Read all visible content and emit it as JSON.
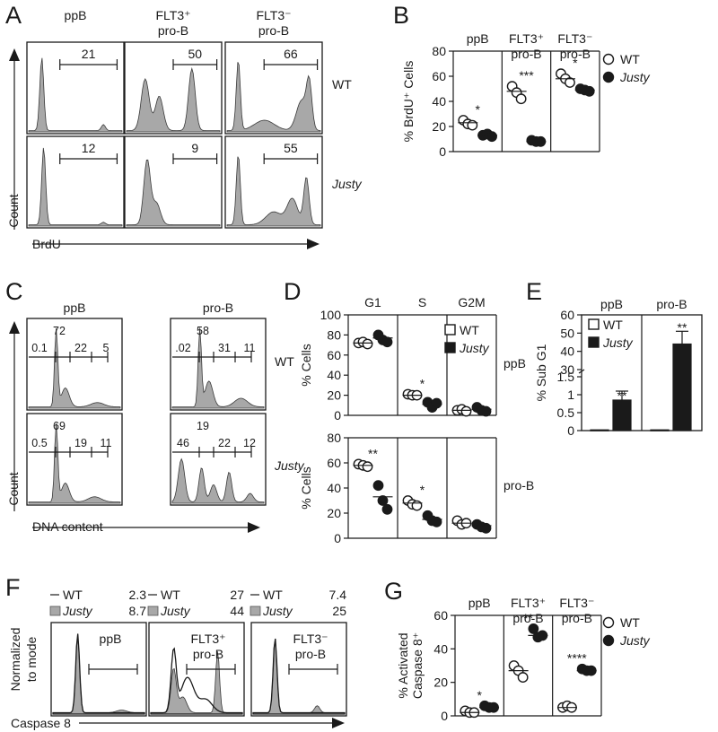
{
  "panel_letters": [
    "A",
    "B",
    "C",
    "D",
    "E",
    "F",
    "G"
  ],
  "A": {
    "columns": [
      "ppB",
      "FLT3⁺\npro-B",
      "FLT3⁻\npro-B"
    ],
    "rows": [
      "WT",
      "Justy"
    ],
    "gates": [
      [
        "21",
        "50",
        "66"
      ],
      [
        "12",
        "9",
        "55"
      ]
    ],
    "ylabel": "Count",
    "xlabel": "BrdU"
  },
  "C": {
    "columns": [
      "ppB",
      "pro-B"
    ],
    "rows": [
      "WT",
      "Justy"
    ],
    "gates": [
      [
        [
          "0.1",
          "72",
          "22",
          "5"
        ],
        [
          ".02",
          "58",
          "31",
          "11"
        ]
      ],
      [
        [
          "0.5",
          "69",
          "19",
          "11"
        ],
        [
          "46",
          "19",
          "22",
          "12"
        ]
      ]
    ],
    "ylabel": "Count",
    "xlabel": "DNA content"
  },
  "F": {
    "ylabel": [
      "Normalized",
      "to mode"
    ],
    "xlabel": "Caspase 8",
    "panels": [
      {
        "name": [
          "ppB"
        ],
        "wt": "2.3",
        "justy": "8.7"
      },
      {
        "name": [
          "FLT3⁺",
          "pro-B"
        ],
        "wt": "27",
        "justy": "44"
      },
      {
        "name": [
          "FLT3⁻",
          "pro-B"
        ],
        "wt": "7.4",
        "justy": "25"
      }
    ],
    "legend": {
      "wt": "WT",
      "justy": "Justy"
    }
  },
  "chart_data": [
    {
      "panel": "B",
      "type": "scatter",
      "ylabel": "% BrdU⁺ Cells",
      "ylim": [
        0,
        80
      ],
      "yticks": [
        0,
        20,
        40,
        60,
        80
      ],
      "groups": [
        "ppB",
        "FLT3⁺\npro-B",
        "FLT3⁻\npro-B"
      ],
      "series": [
        {
          "name": "WT",
          "values": [
            [
              25,
              22,
              21
            ],
            [
              52,
              47,
              42
            ],
            [
              62,
              58,
              55
            ]
          ],
          "means": [
            23,
            48,
            58
          ]
        },
        {
          "name": "Justy",
          "values": [
            [
              13,
              14,
              12
            ],
            [
              9,
              8,
              8
            ],
            [
              50,
              49,
              48
            ]
          ],
          "means": [
            13,
            8,
            49
          ]
        }
      ],
      "significance": [
        "*",
        "***",
        "*"
      ]
    },
    {
      "panel": "D-top",
      "type": "scatter",
      "ylabel": "% Cells",
      "ylim": [
        0,
        100
      ],
      "yticks": [
        0,
        20,
        40,
        60,
        80,
        100
      ],
      "groups": [
        "G1",
        "S",
        "G2M"
      ],
      "row_label": "ppB",
      "series": [
        {
          "name": "WT",
          "values": [
            [
              72,
              73,
              71
            ],
            [
              21,
              20,
              20
            ],
            [
              5,
              6,
              4
            ]
          ],
          "means": [
            72,
            20,
            5
          ]
        },
        {
          "name": "Justy",
          "values": [
            [
              80,
              75,
              73
            ],
            [
              13,
              8,
              12
            ],
            [
              8,
              5,
              4
            ]
          ],
          "means": [
            77,
            11,
            6
          ]
        }
      ],
      "significance": [
        "",
        "*",
        ""
      ]
    },
    {
      "panel": "D-bottom",
      "type": "scatter",
      "ylabel": "% Cells",
      "ylim": [
        0,
        80
      ],
      "yticks": [
        0,
        20,
        40,
        60,
        80
      ],
      "groups": [
        "G1",
        "S",
        "G2M"
      ],
      "row_label": "pro-B",
      "series": [
        {
          "name": "WT",
          "values": [
            [
              59,
              58,
              57
            ],
            [
              30,
              27,
              26
            ],
            [
              14,
              11,
              12
            ]
          ],
          "means": [
            58,
            28,
            12
          ]
        },
        {
          "name": "Justy",
          "values": [
            [
              42,
              30,
              23
            ],
            [
              18,
              14,
              13
            ],
            [
              11,
              9,
              8
            ]
          ],
          "means": [
            33,
            15,
            10
          ]
        }
      ],
      "significance": [
        "**",
        "*",
        ""
      ]
    },
    {
      "panel": "E",
      "type": "bar",
      "ylabel": "% Sub G1",
      "yticks": [
        "0",
        "0.5",
        "1",
        "1.5",
        "30",
        "40",
        "50",
        "60"
      ],
      "groups": [
        "ppB",
        "pro-B"
      ],
      "series": [
        {
          "name": "WT",
          "values": [
            0.02,
            0.02
          ]
        },
        {
          "name": "Justy",
          "values": [
            0.85,
            44
          ],
          "error": [
            0.25,
            7
          ]
        }
      ],
      "significance": [
        "**",
        "**"
      ]
    },
    {
      "panel": "G",
      "type": "scatter",
      "ylabel": "% Activated\nCaspase 8⁺",
      "ylim": [
        0,
        60
      ],
      "yticks": [
        0,
        20,
        40,
        60
      ],
      "groups": [
        "ppB",
        "FLT3⁺\npro-B",
        "FLT3⁻\npro-B"
      ],
      "series": [
        {
          "name": "WT",
          "values": [
            [
              3,
              2,
              2
            ],
            [
              30,
              27,
              23
            ],
            [
              5,
              6,
              5
            ]
          ],
          "means": [
            2,
            27,
            5
          ]
        },
        {
          "name": "Justy",
          "values": [
            [
              6,
              5,
              5
            ],
            [
              52,
              47,
              48
            ],
            [
              28,
              27,
              27
            ]
          ],
          "means": [
            5,
            48,
            27
          ]
        }
      ],
      "significance": [
        "*",
        "**",
        "****"
      ]
    }
  ]
}
